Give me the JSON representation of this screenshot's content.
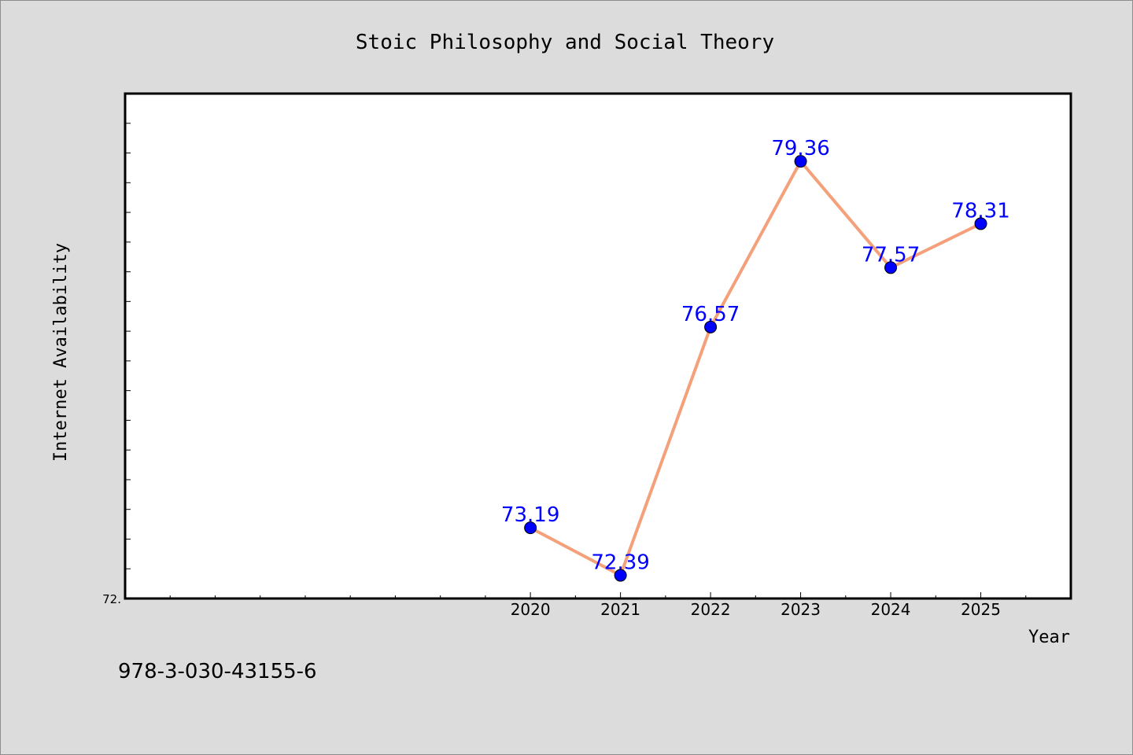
{
  "chart_data": {
    "type": "line",
    "title": "Stoic Philosophy and Social Theory",
    "xlabel": "Year",
    "ylabel": "Internet Availability",
    "x": [
      "2020",
      "2021",
      "2022",
      "2023",
      "2024",
      "2025"
    ],
    "values": [
      73.19,
      72.39,
      76.57,
      79.36,
      77.57,
      78.31
    ],
    "data_labels": [
      "73.19",
      "72.39",
      "76.57",
      "79.36",
      "77.57",
      "78.31"
    ],
    "y_tick_labels": [
      "72."
    ],
    "xlim": [
      2015.5,
      2026.0
    ],
    "ylim": [
      72.0,
      80.5
    ],
    "grid": false,
    "line_color": "#f4a07a",
    "marker_color": "#0000ff"
  },
  "footer": {
    "isbn": "978-3-030-43155-6"
  }
}
